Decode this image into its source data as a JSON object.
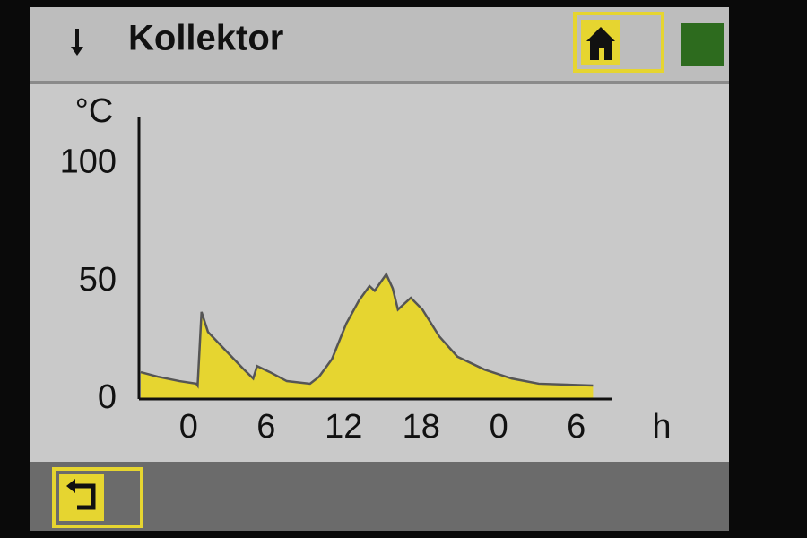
{
  "header": {
    "title": "Kollektor"
  },
  "chart_data": {
    "type": "area",
    "y_label": "°C",
    "x_label": "h",
    "x": [
      -3.7,
      -2.4,
      -0.7,
      0.6,
      0.7,
      1.0,
      1.5,
      2.8,
      4.2,
      5.0,
      5.3,
      6.3,
      7.6,
      9.4,
      10.1,
      11.1,
      12.2,
      13.2,
      14.0,
      14.4,
      15.3,
      15.8,
      16.2,
      17.2,
      18.1,
      19.4,
      20.8,
      22.9,
      25.0,
      27.1,
      31.3
    ],
    "values": [
      11.4,
      9.5,
      7.6,
      6.5,
      5.7,
      37,
      28.5,
      21,
      13,
      8.7,
      14,
      11.4,
      7.6,
      6.5,
      9.5,
      17,
      32,
      42,
      48,
      46,
      53,
      47,
      38,
      43,
      38,
      26.6,
      18,
      12.5,
      8.7,
      6.5,
      5.7
    ],
    "color": "#e6d530",
    "line_color": "#555555",
    "xlim": [
      -3.7,
      32.8
    ],
    "ylim": [
      0,
      120
    ],
    "xticks": [
      0,
      6,
      12,
      18,
      {
        "value": 24,
        "label": "0"
      },
      {
        "value": 30,
        "label": "6"
      }
    ],
    "yticks": [
      0,
      50,
      100
    ]
  }
}
